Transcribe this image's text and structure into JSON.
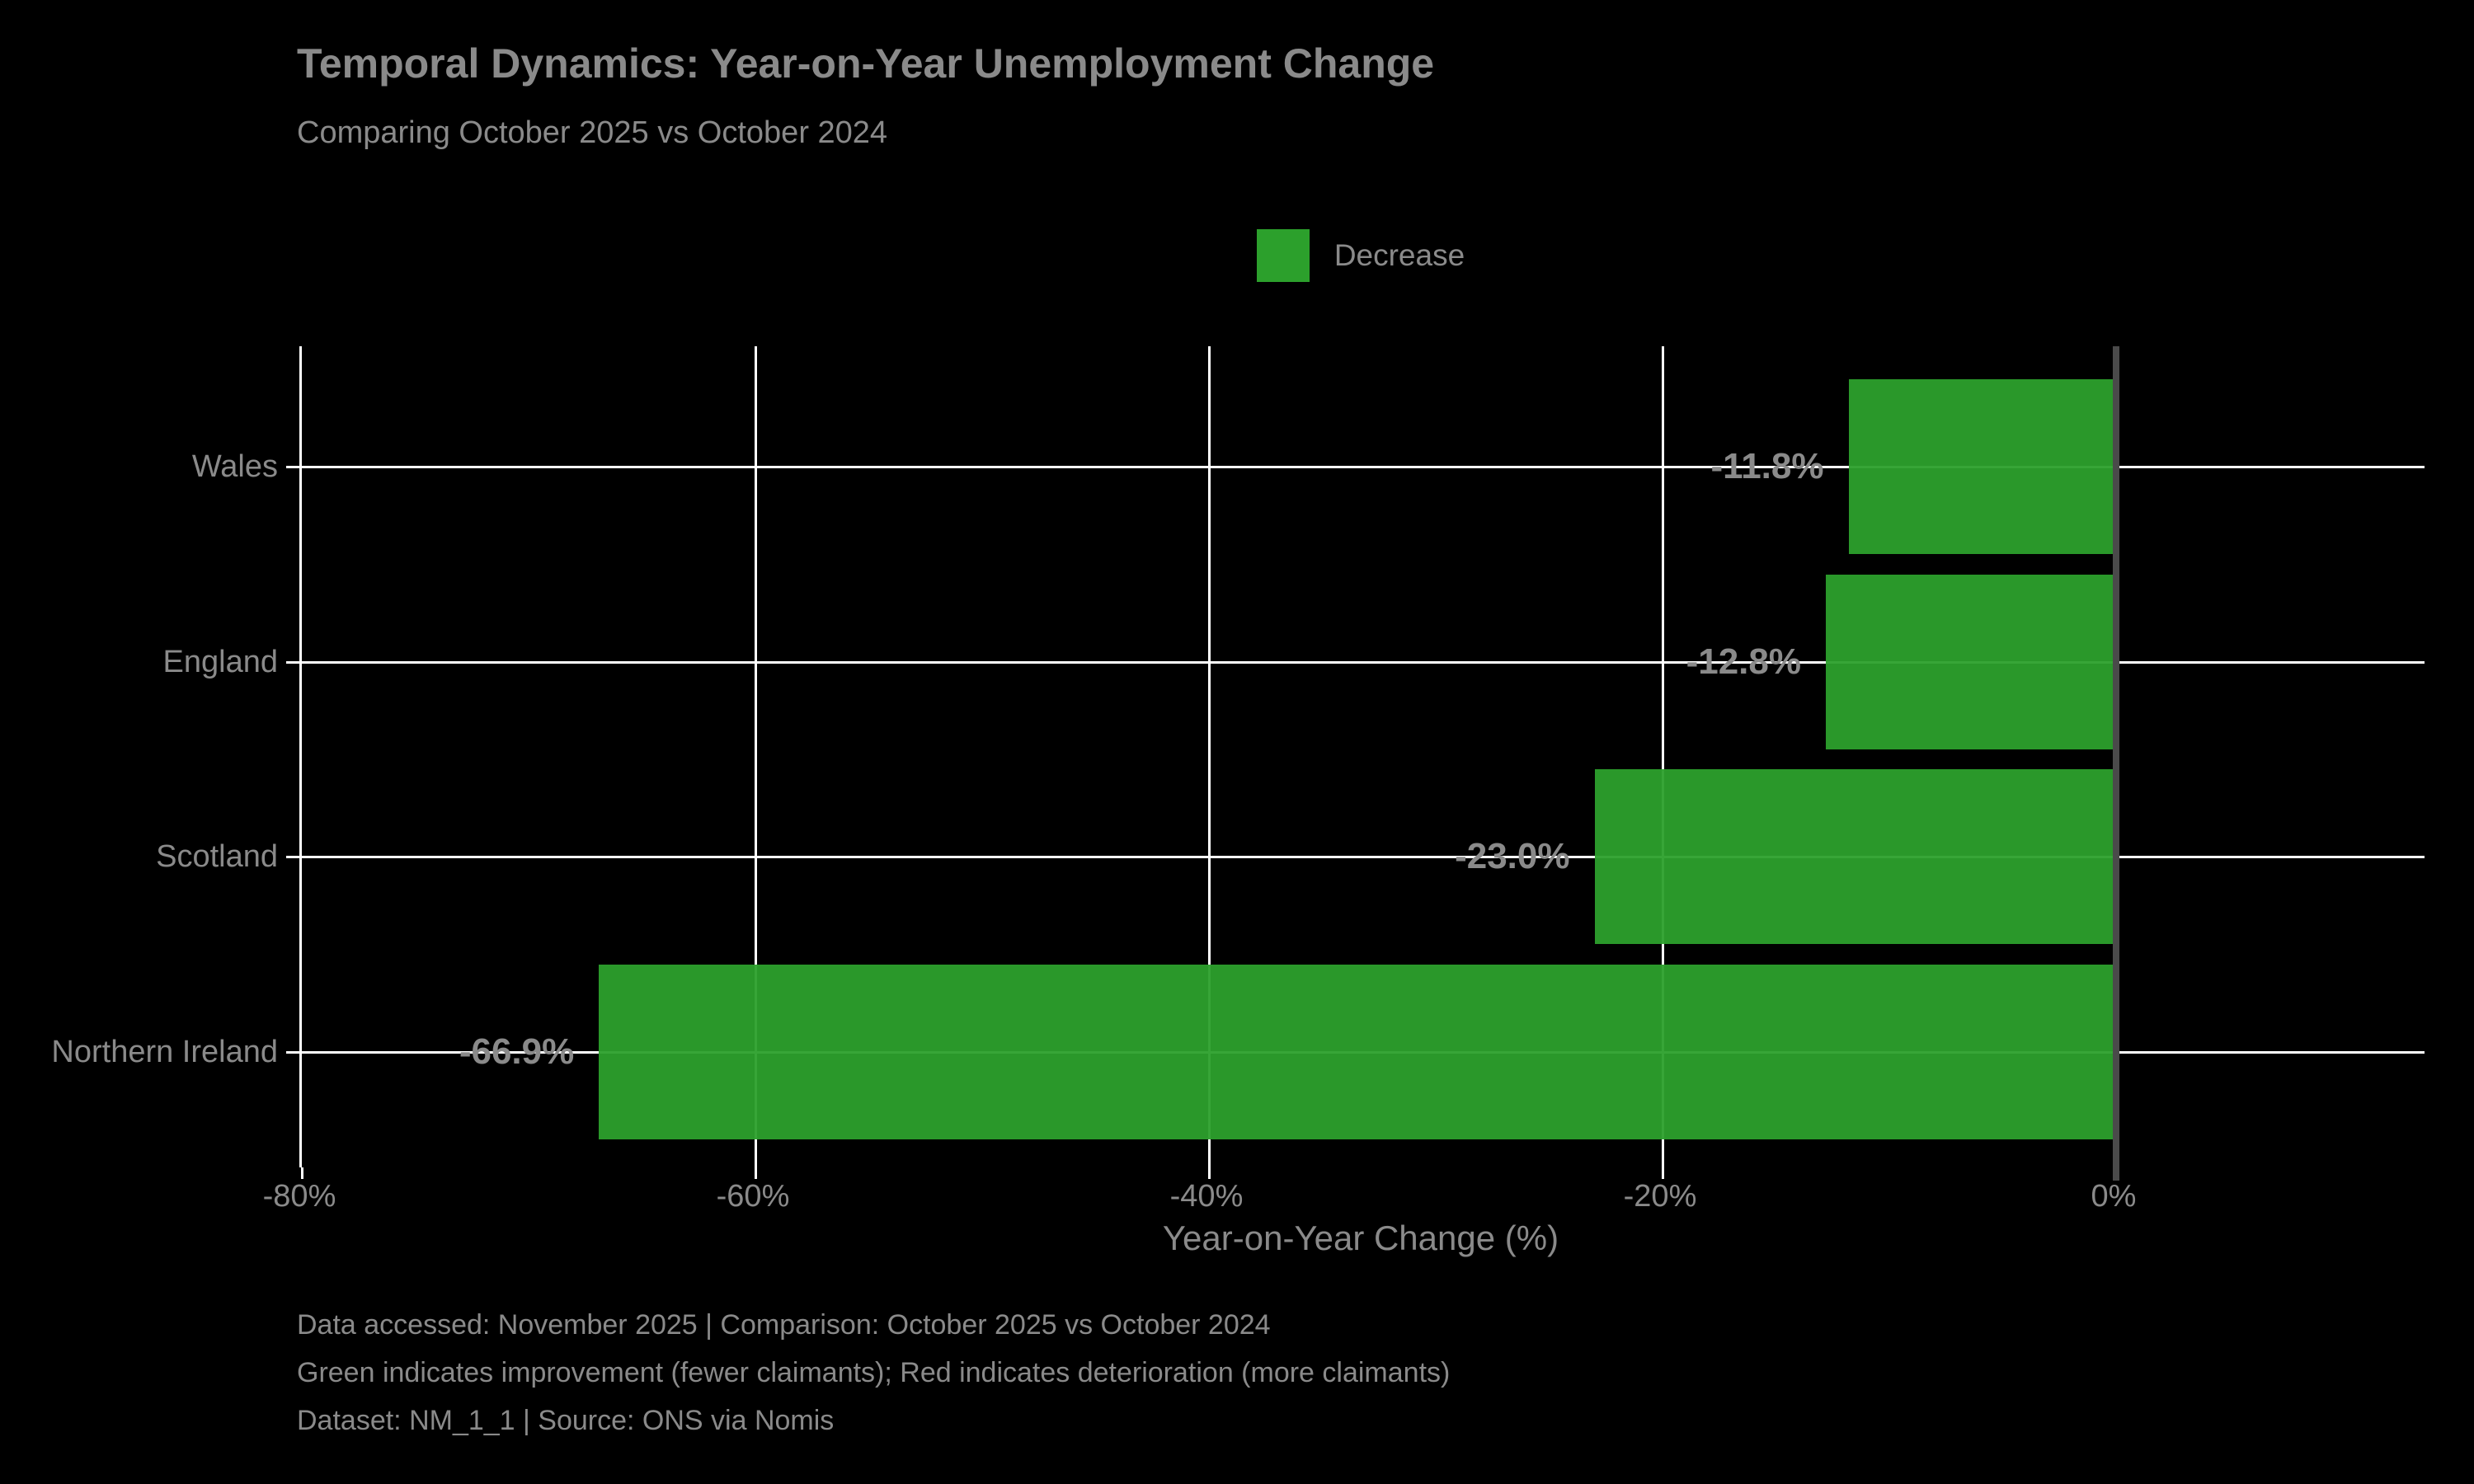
{
  "title": "Temporal Dynamics: Year-on-Year Unemployment Change",
  "subtitle": "Comparing October 2025 vs October 2024",
  "legend": {
    "items": [
      {
        "label": "Decrease",
        "color": "#2ca02c"
      }
    ],
    "position": "upper center"
  },
  "chart_data": {
    "type": "bar",
    "orientation": "horizontal",
    "title": "Temporal Dynamics: Year-on-Year Unemployment Change",
    "subtitle": "Comparing October 2025 vs October 2024",
    "categories": [
      "Wales",
      "England",
      "Scotland",
      "Northern Ireland"
    ],
    "values": [
      -11.8,
      -12.8,
      -23.0,
      -66.9
    ],
    "bar_labels": [
      "-11.8%",
      "-12.8%",
      "-23.0%",
      "-66.9%"
    ],
    "xlabel": "Year-on-Year Change (%)",
    "ylabel": "",
    "xlim": [
      -80,
      13.6
    ],
    "xticks": [
      -80,
      -60,
      -40,
      -20,
      0
    ],
    "xtick_labels": [
      "-80%",
      "-60%",
      "-40%",
      "-20%",
      "0%"
    ],
    "grid": true,
    "legend_entries": [
      "Decrease"
    ],
    "legend_position": "upper center",
    "bar_color": "#2ca02c",
    "background_color": "#000000"
  },
  "footer": {
    "line1": "Data accessed: November 2025 | Comparison: October 2025 vs October 2024",
    "line2": "Green indicates improvement (fewer claimants); Red indicates deterioration (more claimants)",
    "line3": "Dataset: NM_1_1 | Source: ONS via Nomis"
  },
  "colors": {
    "background": "#000000",
    "bar_green": "#2ca02c",
    "text_gray": "#8a8a8a",
    "gridline_white": "#ffffff",
    "zero_line_gray": "#4a4a4a"
  }
}
